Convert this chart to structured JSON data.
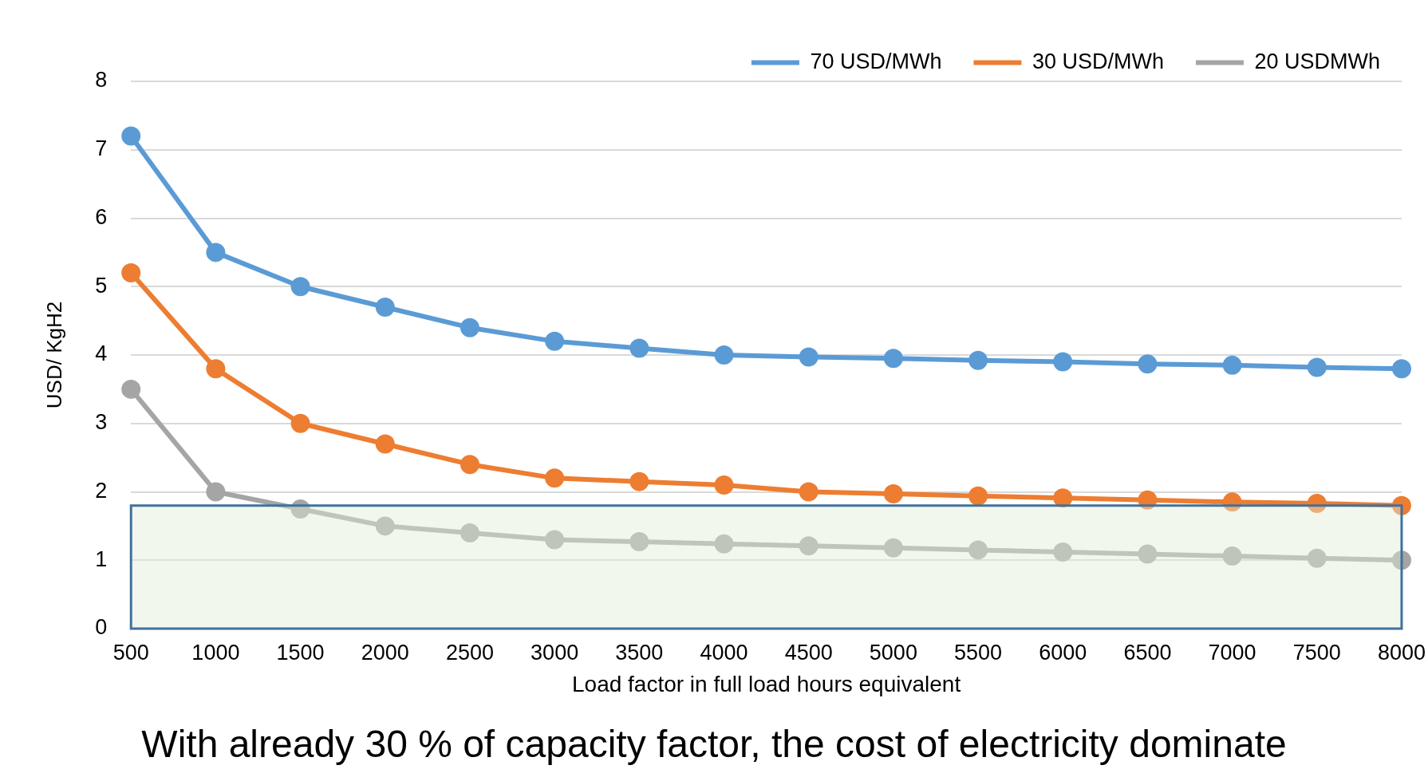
{
  "chart_data": {
    "type": "line",
    "xlabel": "Load factor in full load hours equivalent",
    "ylabel": "USD/ KgH2",
    "categories": [
      "500",
      "1000",
      "1500",
      "2000",
      "2500",
      "3000",
      "3500",
      "4000",
      "4500",
      "5000",
      "5500",
      "6000",
      "6500",
      "7000",
      "7500",
      "8000"
    ],
    "series": [
      {
        "name": "70 USD/MWh",
        "color": "#5b9bd5",
        "values": [
          7.2,
          5.5,
          5.0,
          4.7,
          4.4,
          4.2,
          4.1,
          4.0,
          3.97,
          3.95,
          3.92,
          3.9,
          3.87,
          3.85,
          3.82,
          3.8
        ]
      },
      {
        "name": "30 USD/MWh",
        "color": "#ed7d31",
        "values": [
          5.2,
          3.8,
          3.0,
          2.7,
          2.4,
          2.2,
          2.15,
          2.1,
          2.0,
          1.97,
          1.94,
          1.91,
          1.88,
          1.85,
          1.83,
          1.8
        ]
      },
      {
        "name": "20 USDMWh",
        "color": "#a5a5a5",
        "values": [
          3.5,
          2.0,
          1.75,
          1.5,
          1.4,
          1.3,
          1.27,
          1.24,
          1.21,
          1.18,
          1.15,
          1.12,
          1.09,
          1.06,
          1.03,
          1.0
        ]
      }
    ],
    "ylim": [
      0,
      8
    ],
    "yticks": [
      0,
      1,
      2,
      3,
      4,
      5,
      6,
      7,
      8
    ],
    "grid": "y",
    "legend": "top right",
    "marker": "circle",
    "line_style": "solid",
    "bands": [
      {
        "axis": "y",
        "from": 0,
        "to": 1.8,
        "color": "#e2eed9"
      }
    ],
    "annotations": [
      "With already 30 % of capacity factor, the cost of electricity dominate"
    ]
  }
}
